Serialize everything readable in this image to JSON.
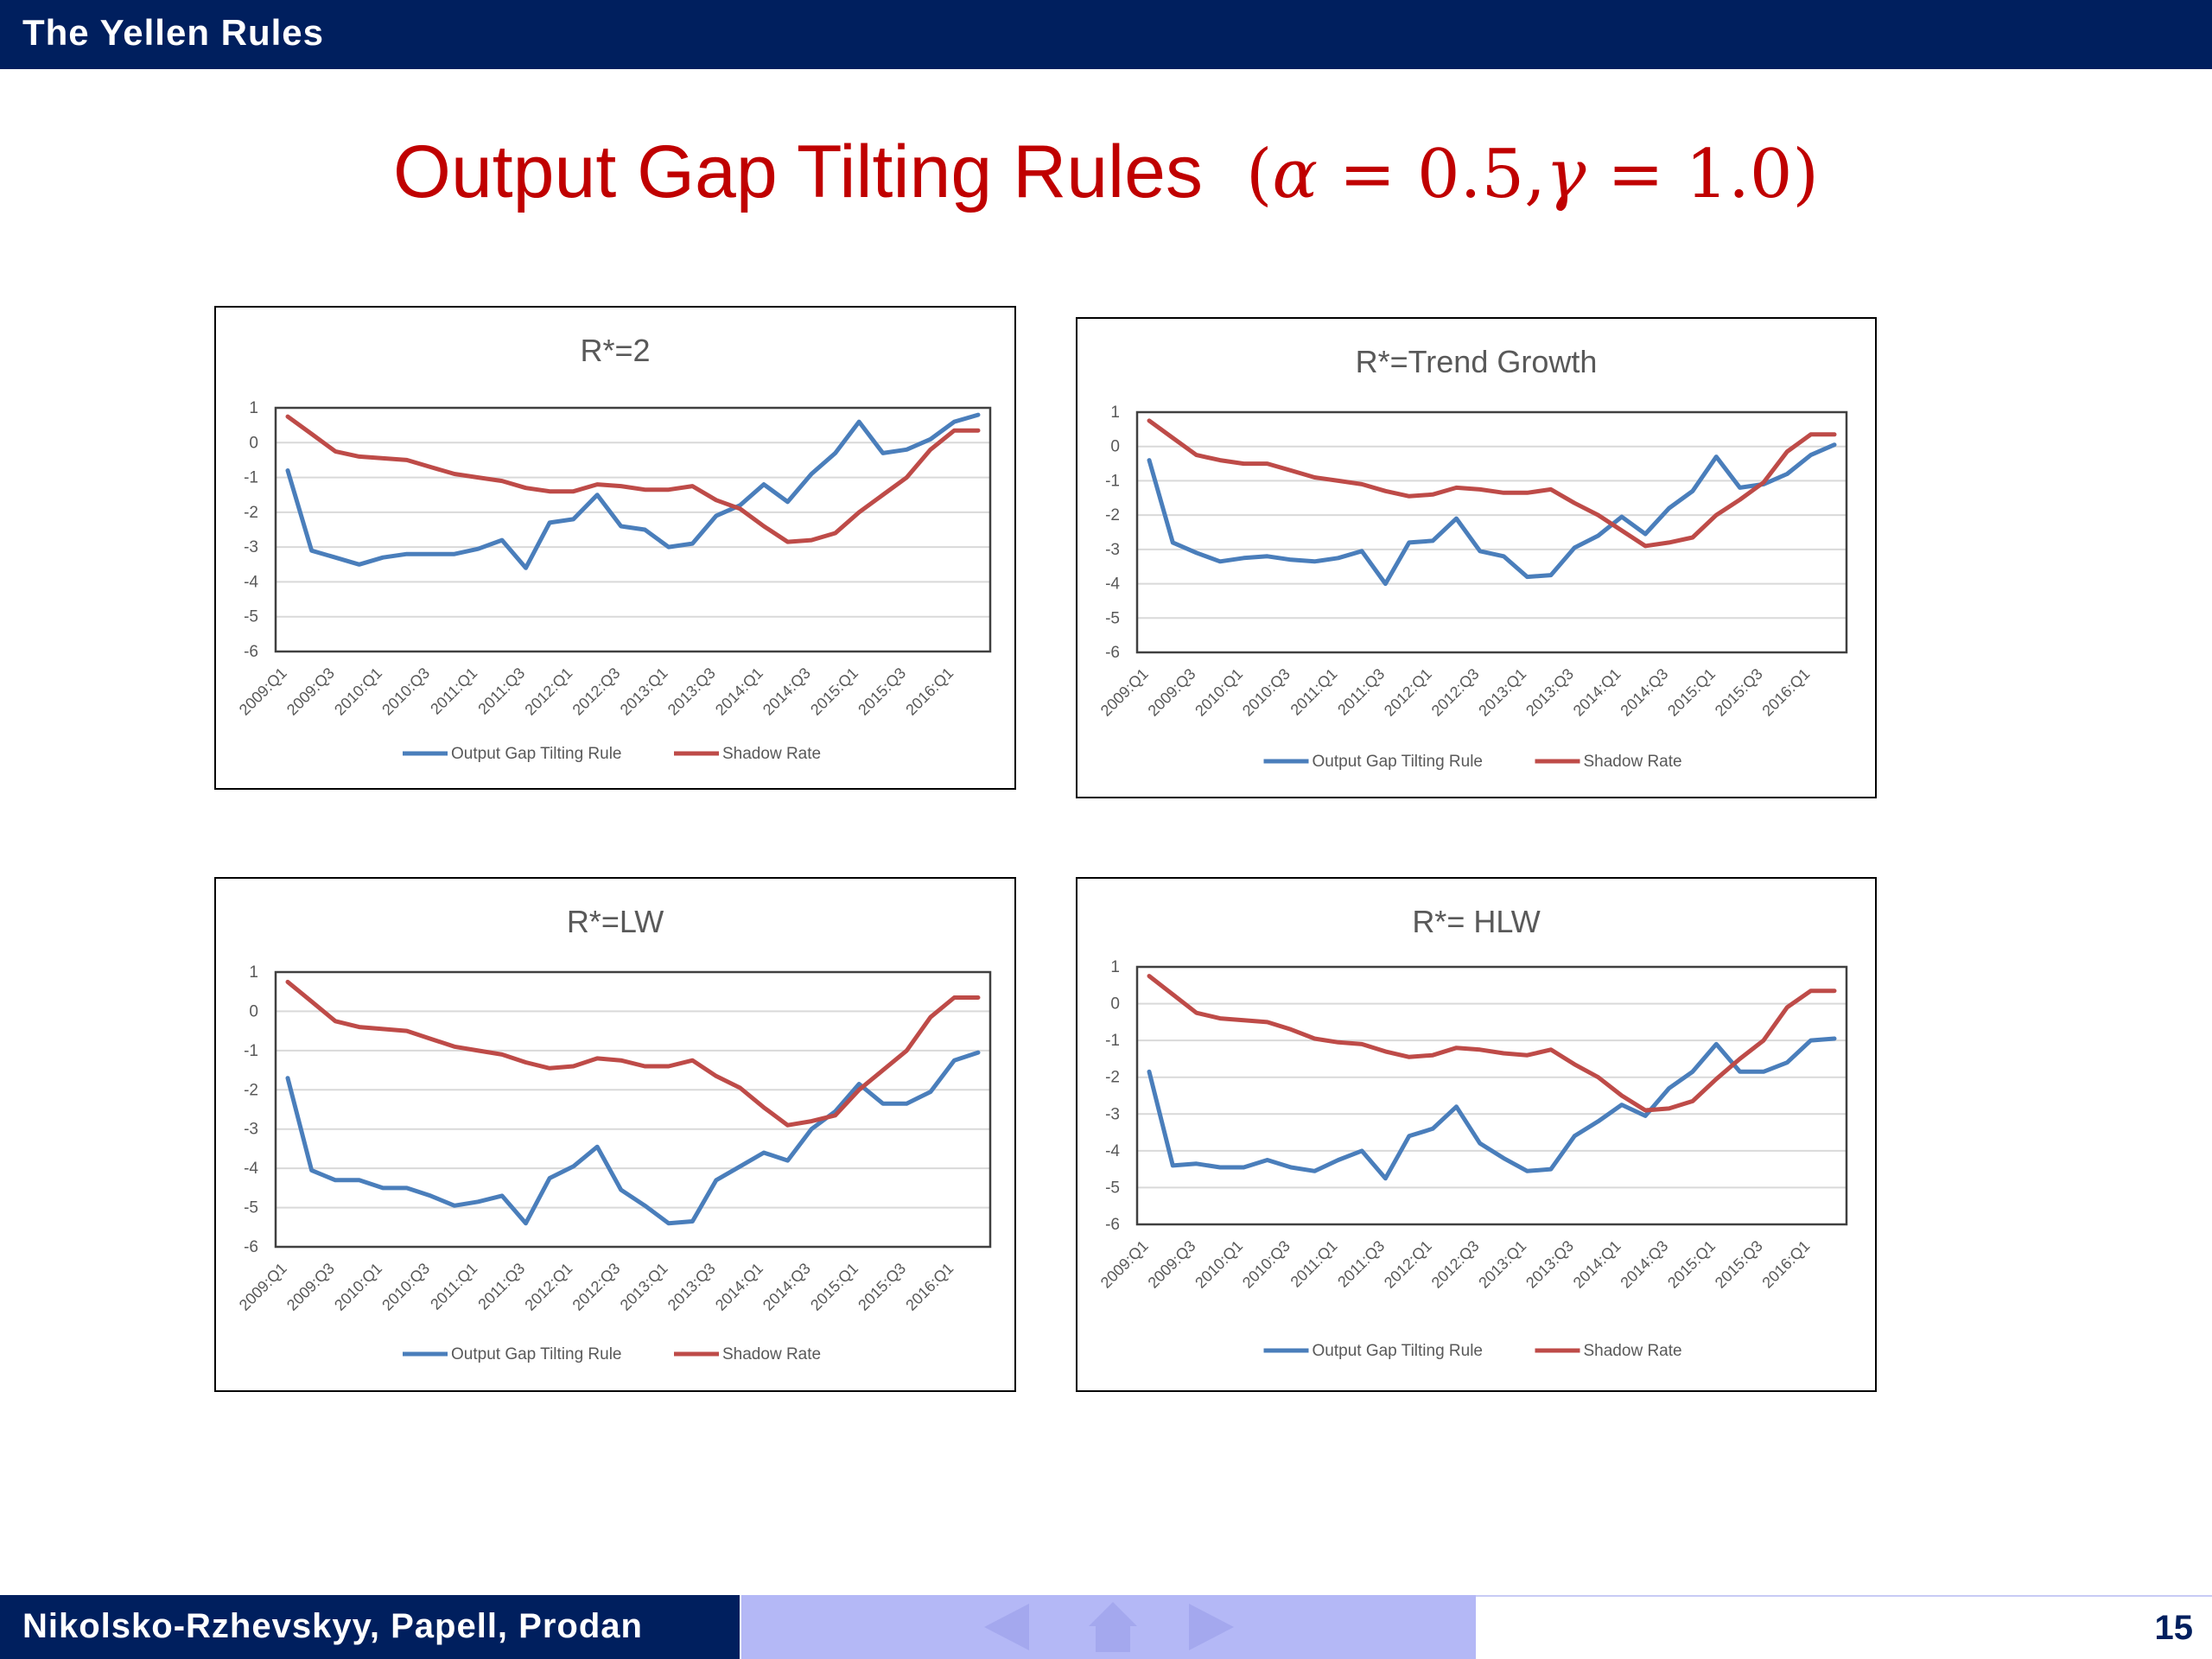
{
  "header": {
    "title": "The Yellen Rules"
  },
  "slide": {
    "title_text": "Output Gap Tilting Rules",
    "title_math": "(α = 0.5, γ = 1.0)",
    "alpha": "α",
    "gamma": "γ",
    "eq1": " = 0.5,",
    "eq2": " = 1.0)",
    "open": "("
  },
  "footer": {
    "authors": "Nikolsko-Rzhevskyy, Papell, Prodan",
    "page": "15"
  },
  "nav_icons": [
    "arrow-left-icon",
    "home-icon",
    "arrow-right-icon"
  ],
  "colors": {
    "rule": "#4a7ebb",
    "shadow": "#be4b48",
    "title": "#c00000",
    "bar": "#001f5e"
  },
  "chart_data": [
    {
      "type": "line",
      "title": "R*=2",
      "x_ticks": [
        "2009:Q1",
        "2009:Q3",
        "2010:Q1",
        "2010:Q3",
        "2011:Q1",
        "2011:Q3",
        "2012:Q1",
        "2012:Q3",
        "2013:Q1",
        "2013:Q3",
        "2014:Q1",
        "2014:Q3",
        "2015:Q1",
        "2015:Q3",
        "2016:Q1"
      ],
      "ylim": [
        -6,
        1
      ],
      "y_ticks": [
        "1",
        "0",
        "-1",
        "-2",
        "-3",
        "-4",
        "-5",
        "-6"
      ],
      "series": [
        {
          "name": "Output Gap Tilting Rule",
          "values": [
            -0.8,
            -3.1,
            -3.3,
            -3.5,
            -3.3,
            -3.2,
            -3.2,
            -3.2,
            -3.05,
            -2.8,
            -3.6,
            -2.3,
            -2.2,
            -1.5,
            -2.4,
            -2.5,
            -3.0,
            -2.9,
            -2.1,
            -1.8,
            -1.2,
            -1.7,
            -0.9,
            -0.3,
            0.6,
            -0.3,
            -0.2,
            0.1,
            0.6,
            0.8
          ]
        },
        {
          "name": "Shadow Rate",
          "values": [
            0.75,
            0.25,
            -0.25,
            -0.4,
            -0.45,
            -0.5,
            -0.7,
            -0.9,
            -1.0,
            -1.1,
            -1.3,
            -1.4,
            -1.4,
            -1.2,
            -1.25,
            -1.35,
            -1.35,
            -1.25,
            -1.65,
            -1.9,
            -2.4,
            -2.85,
            -2.8,
            -2.6,
            -2.0,
            -1.5,
            -1.0,
            -0.2,
            0.35,
            0.35
          ]
        }
      ]
    },
    {
      "type": "line",
      "title": "R*=Trend Growth",
      "x_ticks": [
        "2009:Q1",
        "2009:Q3",
        "2010:Q1",
        "2010:Q3",
        "2011:Q1",
        "2011:Q3",
        "2012:Q1",
        "2012:Q3",
        "2013:Q1",
        "2013:Q3",
        "2014:Q1",
        "2014:Q3",
        "2015:Q1",
        "2015:Q3",
        "2016:Q1"
      ],
      "ylim": [
        -6,
        1
      ],
      "y_ticks": [
        "1",
        "0",
        "-1",
        "-2",
        "-3",
        "-4",
        "-5",
        "-6"
      ],
      "series": [
        {
          "name": "Output Gap Tilting Rule",
          "values": [
            -0.4,
            -2.8,
            -3.1,
            -3.35,
            -3.25,
            -3.2,
            -3.3,
            -3.35,
            -3.25,
            -3.05,
            -4.0,
            -2.8,
            -2.75,
            -2.1,
            -3.05,
            -3.2,
            -3.8,
            -3.75,
            -2.95,
            -2.6,
            -2.05,
            -2.55,
            -1.8,
            -1.3,
            -0.3,
            -1.2,
            -1.1,
            -0.8,
            -0.25,
            0.05
          ]
        },
        {
          "name": "Shadow Rate",
          "values": [
            0.75,
            0.25,
            -0.25,
            -0.4,
            -0.5,
            -0.5,
            -0.7,
            -0.9,
            -1.0,
            -1.1,
            -1.3,
            -1.45,
            -1.4,
            -1.2,
            -1.25,
            -1.35,
            -1.35,
            -1.25,
            -1.65,
            -2.0,
            -2.45,
            -2.9,
            -2.8,
            -2.65,
            -2.0,
            -1.55,
            -1.05,
            -0.15,
            0.35,
            0.35
          ]
        }
      ]
    },
    {
      "type": "line",
      "title": "R*=LW",
      "x_ticks": [
        "2009:Q1",
        "2009:Q3",
        "2010:Q1",
        "2010:Q3",
        "2011:Q1",
        "2011:Q3",
        "2012:Q1",
        "2012:Q3",
        "2013:Q1",
        "2013:Q3",
        "2014:Q1",
        "2014:Q3",
        "2015:Q1",
        "2015:Q3",
        "2016:Q1"
      ],
      "ylim": [
        -6,
        1
      ],
      "y_ticks": [
        "1",
        "0",
        "-1",
        "-2",
        "-3",
        "-4",
        "-5",
        "-6"
      ],
      "series": [
        {
          "name": "Output Gap Tilting Rule",
          "values": [
            -1.7,
            -4.05,
            -4.3,
            -4.3,
            -4.5,
            -4.5,
            -4.7,
            -4.95,
            -4.85,
            -4.7,
            -5.4,
            -4.25,
            -3.95,
            -3.45,
            -4.55,
            -4.95,
            -5.4,
            -5.35,
            -4.3,
            -3.95,
            -3.6,
            -3.8,
            -3.0,
            -2.55,
            -1.85,
            -2.35,
            -2.35,
            -2.05,
            -1.25,
            -1.05
          ]
        },
        {
          "name": "Shadow Rate",
          "values": [
            0.75,
            0.25,
            -0.25,
            -0.4,
            -0.45,
            -0.5,
            -0.7,
            -0.9,
            -1.0,
            -1.1,
            -1.3,
            -1.45,
            -1.4,
            -1.2,
            -1.25,
            -1.4,
            -1.4,
            -1.25,
            -1.65,
            -1.95,
            -2.45,
            -2.9,
            -2.8,
            -2.65,
            -2.0,
            -1.5,
            -1.0,
            -0.15,
            0.35,
            0.35
          ]
        }
      ]
    },
    {
      "type": "line",
      "title": "R*= HLW",
      "x_ticks": [
        "2009:Q1",
        "2009:Q3",
        "2010:Q1",
        "2010:Q3",
        "2011:Q1",
        "2011:Q3",
        "2012:Q1",
        "2012:Q3",
        "2013:Q1",
        "2013:Q3",
        "2014:Q1",
        "2014:Q3",
        "2015:Q1",
        "2015:Q3",
        "2016:Q1"
      ],
      "ylim": [
        -6,
        1
      ],
      "y_ticks": [
        "1",
        "0",
        "-1",
        "-2",
        "-3",
        "-4",
        "-5",
        "-6"
      ],
      "series": [
        {
          "name": "Output Gap Tilting Rule",
          "values": [
            -1.85,
            -4.4,
            -4.35,
            -4.45,
            -4.45,
            -4.25,
            -4.45,
            -4.55,
            -4.25,
            -4.0,
            -4.75,
            -3.6,
            -3.4,
            -2.8,
            -3.8,
            -4.2,
            -4.55,
            -4.5,
            -3.6,
            -3.2,
            -2.75,
            -3.05,
            -2.3,
            -1.85,
            -1.1,
            -1.85,
            -1.85,
            -1.6,
            -1.0,
            -0.95
          ]
        },
        {
          "name": "Shadow Rate",
          "values": [
            0.75,
            0.25,
            -0.25,
            -0.4,
            -0.45,
            -0.5,
            -0.7,
            -0.95,
            -1.05,
            -1.1,
            -1.3,
            -1.45,
            -1.4,
            -1.2,
            -1.25,
            -1.35,
            -1.4,
            -1.25,
            -1.65,
            -2.0,
            -2.5,
            -2.9,
            -2.85,
            -2.65,
            -2.05,
            -1.5,
            -1.0,
            -0.1,
            0.35,
            0.35
          ]
        }
      ]
    }
  ]
}
